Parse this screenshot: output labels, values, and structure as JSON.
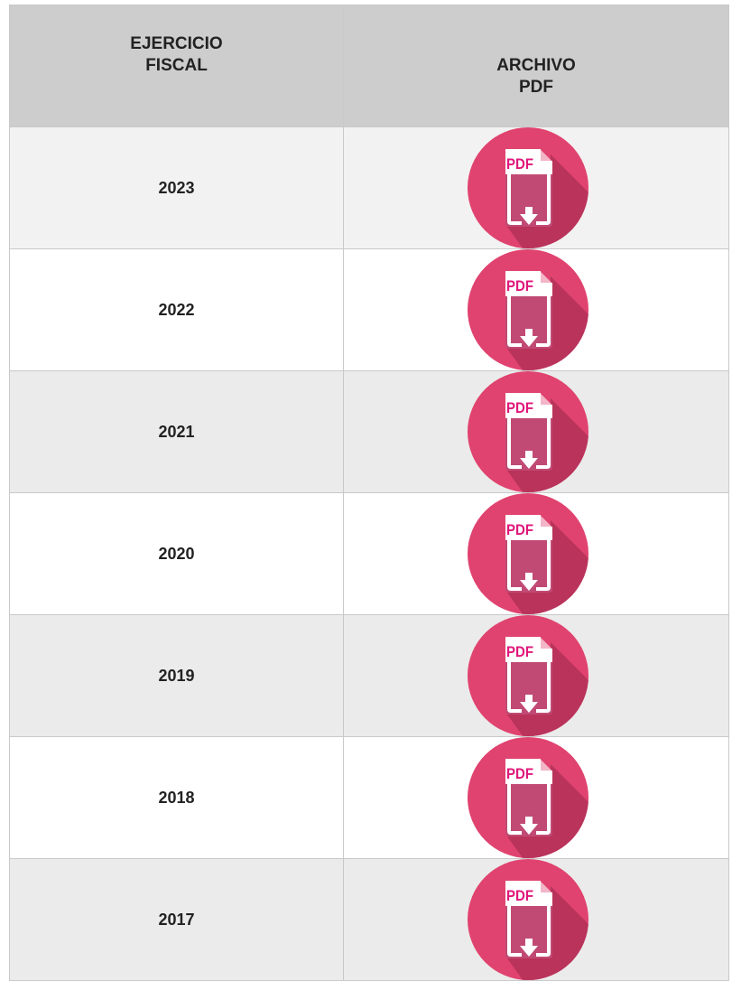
{
  "table": {
    "header": [
      "EJERCICIO FISCAL",
      "ARCHIVO PDF"
    ],
    "icon_label": "PDF",
    "rows": [
      [
        "2023"
      ],
      [
        "2022"
      ],
      [
        "2021"
      ],
      [
        "2020"
      ],
      [
        "2019"
      ],
      [
        "2018"
      ],
      [
        "2017"
      ]
    ]
  }
}
